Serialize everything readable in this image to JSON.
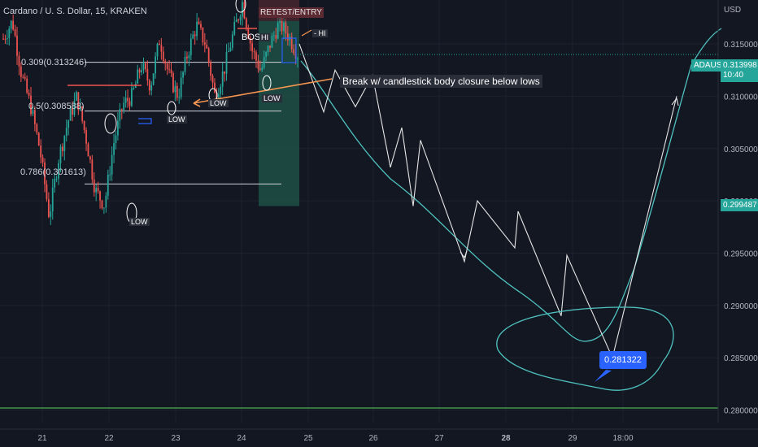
{
  "header": {
    "symbol_line": "Cardano / U. S. Dollar, 15, KRAKEN",
    "currency": "USD"
  },
  "annotations": {
    "retest_entry": "RETEST/ENTRY",
    "bos": "BOS",
    "hi_small": "HI",
    "hi_arrow": "- HI",
    "low": "LOW",
    "break_note": "Break w/ candlestick body closure below lows",
    "target_price": "0.281322"
  },
  "fib_levels": [
    {
      "label": "0.309(0.313246)",
      "value": 0.313246
    },
    {
      "label": "0.5(0.308588)",
      "value": 0.308588
    },
    {
      "label": "0.786(0.301613)",
      "value": 0.301613
    }
  ],
  "price_tags": {
    "symbol": "ADAUSD",
    "last_price": "0.313998",
    "countdown": "10:40",
    "support_price": "0.299487"
  },
  "colors": {
    "background": "#131722",
    "up_candle": "#26a69a",
    "down_candle": "#ef5350",
    "ema_line": "#4fc3c0",
    "support_line": "#4caf50",
    "target_badge": "#2962ff",
    "orange_arrow": "#f79650",
    "entry_zone": "#1e5448"
  },
  "chart_data": {
    "type": "candlestick",
    "title": "Cardano / U. S. Dollar, 15, KRAKEN",
    "ylabel": "USD",
    "ylim": [
      0.2788,
      0.3192
    ],
    "y_ticks": [
      "0.315000",
      "0.310000",
      "0.305000",
      "0.300000",
      "0.295000",
      "0.290000",
      "0.285000",
      "0.280000"
    ],
    "x_ticks": [
      "21",
      "22",
      "23",
      "24",
      "25",
      "26",
      "27",
      "28",
      "29",
      "18:00"
    ],
    "price_path": [
      0.3155,
      0.3172,
      0.312,
      0.309,
      0.3048,
      0.2985,
      0.304,
      0.3075,
      0.31,
      0.306,
      0.301,
      0.2996,
      0.3055,
      0.3092,
      0.31,
      0.313,
      0.311,
      0.3155,
      0.312,
      0.31,
      0.314,
      0.3168,
      0.315,
      0.31,
      0.3125,
      0.316,
      0.319,
      0.3145,
      0.3124,
      0.315,
      0.317,
      0.3158,
      0.314
    ],
    "projected_path": [
      0.315,
      0.3085,
      0.3125,
      0.309,
      0.312,
      0.3032,
      0.307,
      0.2995,
      0.3058,
      0.2942,
      0.3,
      0.2955,
      0.299,
      0.289,
      0.2948,
      0.285,
      0.31
    ],
    "target_price": 0.281322,
    "support_level": 0.2802,
    "last_price": 0.313998,
    "key_level": 0.299487
  }
}
